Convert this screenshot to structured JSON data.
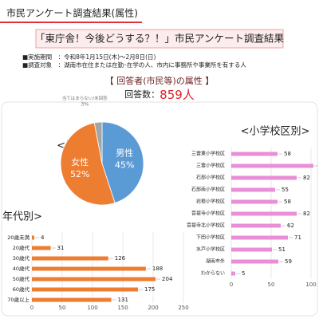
{
  "header": {
    "page_title": "市民アンケート調査結果(属性)",
    "survey_title": "「東庁舎！今後どうする？！」市民アンケート調査結果",
    "period": "■実施期間　：令和8年1月15日(木)～2月8日(日)",
    "target": "■調査対象　：湖南市在住または在勤･在学の人、市内に事務所や事業所を有する人",
    "section": "【 回答者(市民等)の属性 】",
    "count_label": "回答数：",
    "count_value": "859人"
  },
  "chart_data": [
    {
      "type": "pie",
      "title": "<性別>",
      "categories": [
        "男性",
        "女性",
        "当てはまらない/未回答"
      ],
      "values": [
        45,
        52,
        3
      ],
      "value_labels": [
        "45%",
        "52%",
        "3%"
      ],
      "colors": [
        "#5b9bd5",
        "#ed7d31",
        "#a5a5a5"
      ]
    },
    {
      "type": "bar",
      "title": "<小学校区別>",
      "categories": [
        "三雲東小学校区",
        "三雲小学校区",
        "石部小学校区",
        "石部南小学校区",
        "岩根小学校区",
        "菩提寺小学校区",
        "菩提寺北小学校区",
        "下田小学校区",
        "水戸小学校区",
        "湖南市外",
        "わからない"
      ],
      "values": [
        58,
        103,
        82,
        55,
        58,
        82,
        62,
        71,
        51,
        59,
        5
      ],
      "color": "#e88fd8",
      "xlim": [
        0,
        100
      ],
      "xticks": [
        0,
        50,
        100
      ],
      "grid": true
    },
    {
      "type": "bar",
      "title": "年代別>",
      "categories": [
        "20歳未満",
        "20歳代",
        "30歳代",
        "40歳代",
        "50歳代",
        "60歳代",
        "70歳以上"
      ],
      "values": [
        4,
        31,
        126,
        188,
        204,
        175,
        131
      ],
      "color": "#ed7d31",
      "xlim": [
        0,
        250
      ],
      "xticks": [
        0,
        50,
        100,
        150,
        200,
        250
      ],
      "grid": true
    }
  ]
}
